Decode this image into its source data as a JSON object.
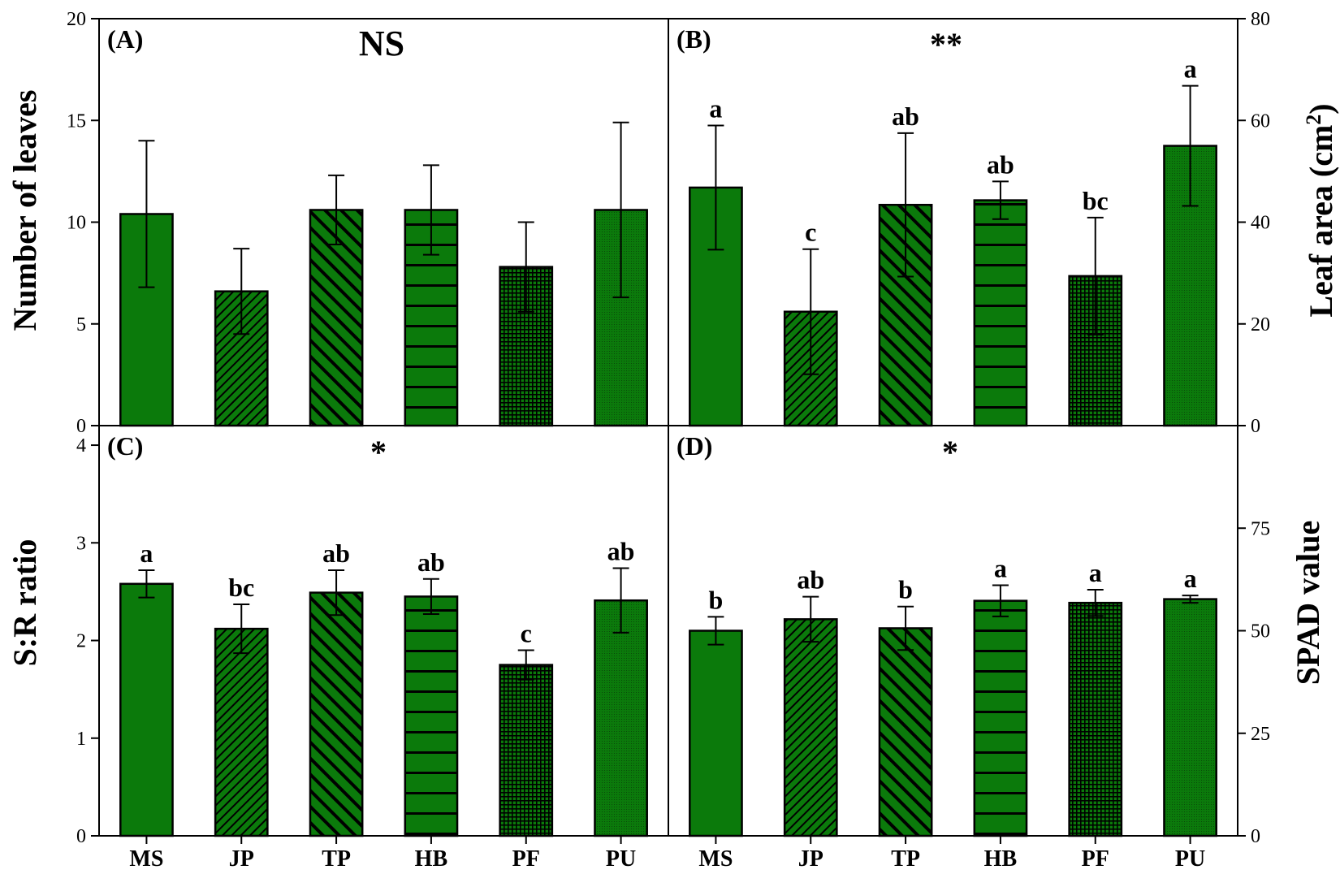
{
  "chart_data": [
    {
      "type": "bar",
      "panel": "(A)",
      "significance": "NS",
      "categories": [
        "MS",
        "JP",
        "TP",
        "HB",
        "PF",
        "PU"
      ],
      "values": [
        10.4,
        6.6,
        10.6,
        10.6,
        7.8,
        10.6
      ],
      "errors": [
        3.6,
        2.1,
        1.7,
        2.2,
        2.2,
        4.3
      ],
      "letters": [
        "",
        "",
        "",
        "",
        "",
        ""
      ],
      "ylabel": "Number of leaves",
      "ylim": [
        0,
        20
      ],
      "yticks": [
        "0",
        "5",
        "10",
        "15",
        "20"
      ],
      "yaxis_side": "left"
    },
    {
      "type": "bar",
      "panel": "(B)",
      "significance": "**",
      "categories": [
        "MS",
        "JP",
        "TP",
        "HB",
        "PF",
        "PU"
      ],
      "values": [
        46.8,
        22.4,
        43.4,
        44.3,
        29.4,
        55.0
      ],
      "errors": [
        12.2,
        12.3,
        14.1,
        3.7,
        11.5,
        11.8
      ],
      "letters": [
        "a",
        "c",
        "ab",
        "ab",
        "bc",
        "a"
      ],
      "ylabel": "Leaf area (cm",
      "ylabel_superscript": "2",
      "ylabel_close": ")",
      "ylim": [
        0,
        80
      ],
      "yticks": [
        "0",
        "20",
        "40",
        "60",
        "80"
      ],
      "yaxis_side": "right"
    },
    {
      "type": "bar",
      "panel": "(C)",
      "significance": "*",
      "categories": [
        "MS",
        "JP",
        "TP",
        "HB",
        "PF",
        "PU"
      ],
      "values": [
        2.58,
        2.12,
        2.49,
        2.45,
        1.75,
        2.41
      ],
      "errors": [
        0.14,
        0.25,
        0.23,
        0.18,
        0.15,
        0.33
      ],
      "letters": [
        "a",
        "bc",
        "ab",
        "ab",
        "c",
        "ab"
      ],
      "ylabel": "S:R ratio",
      "ylim": [
        0,
        4.2
      ],
      "yticks": [
        "0",
        "1",
        "2",
        "3",
        "4"
      ],
      "yaxis_side": "left"
    },
    {
      "type": "bar",
      "panel": "(D)",
      "significance": "*",
      "categories": [
        "MS",
        "JP",
        "TP",
        "HB",
        "PF",
        "PU"
      ],
      "values": [
        50.0,
        52.8,
        50.6,
        57.3,
        56.8,
        57.7
      ],
      "errors": [
        3.4,
        5.5,
        5.3,
        3.8,
        3.2,
        0.9
      ],
      "letters": [
        "b",
        "ab",
        "b",
        "a",
        "a",
        "a"
      ],
      "ylabel": "SPAD value",
      "ylim": [
        0,
        100
      ],
      "yticks": [
        "0",
        "25",
        "50",
        "75"
      ],
      "yaxis_side": "right"
    }
  ],
  "colors": {
    "bar_fill": "#0b7a0b",
    "pattern_dark": "#000000",
    "stroke": "#000000",
    "background": "#ffffff"
  }
}
